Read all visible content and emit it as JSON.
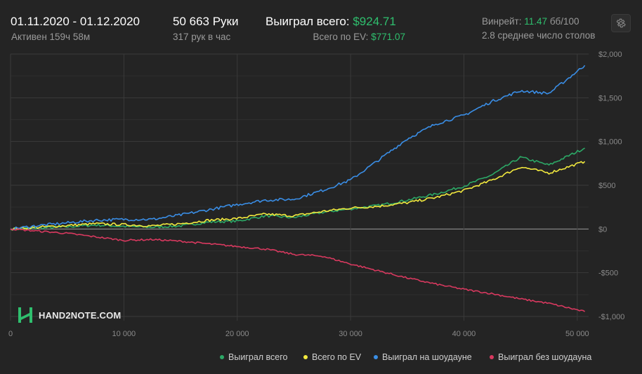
{
  "header": {
    "date_range": "01.11.2020 - 01.12.2020",
    "active": "Активен 159ч 58м",
    "hands": "50 663 Руки",
    "hands_per_hour": "317 рук в час",
    "won_total_label": "Выиграл всего:",
    "won_total_value": "$924.71",
    "ev_total_label": "Всего по EV:",
    "ev_total_value": "$771.07",
    "winrate_label": "Винрейт:",
    "winrate_value": "11.47",
    "winrate_unit": "бб/100",
    "avg_tables": "2.8 среднее число столов"
  },
  "logo": {
    "text": "HAND2NOTE.COM"
  },
  "icons": {
    "settings": "gear-icon",
    "logo": "hand2note-logo-icon"
  },
  "colors": {
    "background": "#242424",
    "won_total": "#2ca866",
    "ev": "#f3ea3e",
    "showdown": "#3a8ee6",
    "non_showdown": "#d8395f",
    "grid": "#3a3a3a",
    "zero_line": "#9a9a9a"
  },
  "chart_data": {
    "type": "line",
    "title": "",
    "xlabel": "",
    "ylabel": "",
    "xlim": [
      0,
      51000
    ],
    "ylim": [
      -1000,
      2000
    ],
    "x_ticks": [
      0,
      10000,
      20000,
      30000,
      40000,
      50000
    ],
    "x_tick_labels": [
      "0",
      "10 000",
      "20 000",
      "30 000",
      "40 000",
      "50 000"
    ],
    "y_ticks": [
      2000,
      1500,
      1000,
      500,
      0,
      -500,
      -1000
    ],
    "y_tick_labels": [
      "$2,000",
      "$1,500",
      "$1,000",
      "$500",
      "$0",
      "-$500",
      "-$1,000"
    ],
    "grid": true,
    "legend_position": "bottom-right",
    "x": [
      0,
      2500,
      5000,
      7500,
      10000,
      12500,
      15000,
      17500,
      20000,
      22500,
      25000,
      27500,
      30000,
      32500,
      35000,
      37500,
      40000,
      42500,
      45000,
      47500,
      50663
    ],
    "series": [
      {
        "name": "Выиграл всего",
        "color": "#2ca866",
        "values": [
          0,
          10,
          25,
          45,
          30,
          20,
          35,
          80,
          90,
          150,
          130,
          190,
          230,
          270,
          330,
          400,
          490,
          620,
          820,
          730,
          925
        ]
      },
      {
        "name": "Всего по EV",
        "color": "#f3ea3e",
        "values": [
          0,
          20,
          40,
          60,
          50,
          35,
          60,
          100,
          120,
          170,
          150,
          200,
          240,
          260,
          300,
          360,
          440,
          560,
          710,
          640,
          771
        ]
      },
      {
        "name": "Выиграл на шоудауне",
        "color": "#3a8ee6",
        "values": [
          0,
          40,
          70,
          100,
          110,
          110,
          160,
          220,
          280,
          330,
          340,
          440,
          560,
          790,
          1030,
          1200,
          1300,
          1460,
          1580,
          1550,
          1870
        ]
      },
      {
        "name": "Выиграл без шоудауна",
        "color": "#d8395f",
        "values": [
          0,
          -25,
          -50,
          -90,
          -130,
          -120,
          -140,
          -170,
          -200,
          -230,
          -290,
          -310,
          -400,
          -480,
          -560,
          -630,
          -690,
          -740,
          -800,
          -850,
          -945
        ]
      }
    ]
  }
}
